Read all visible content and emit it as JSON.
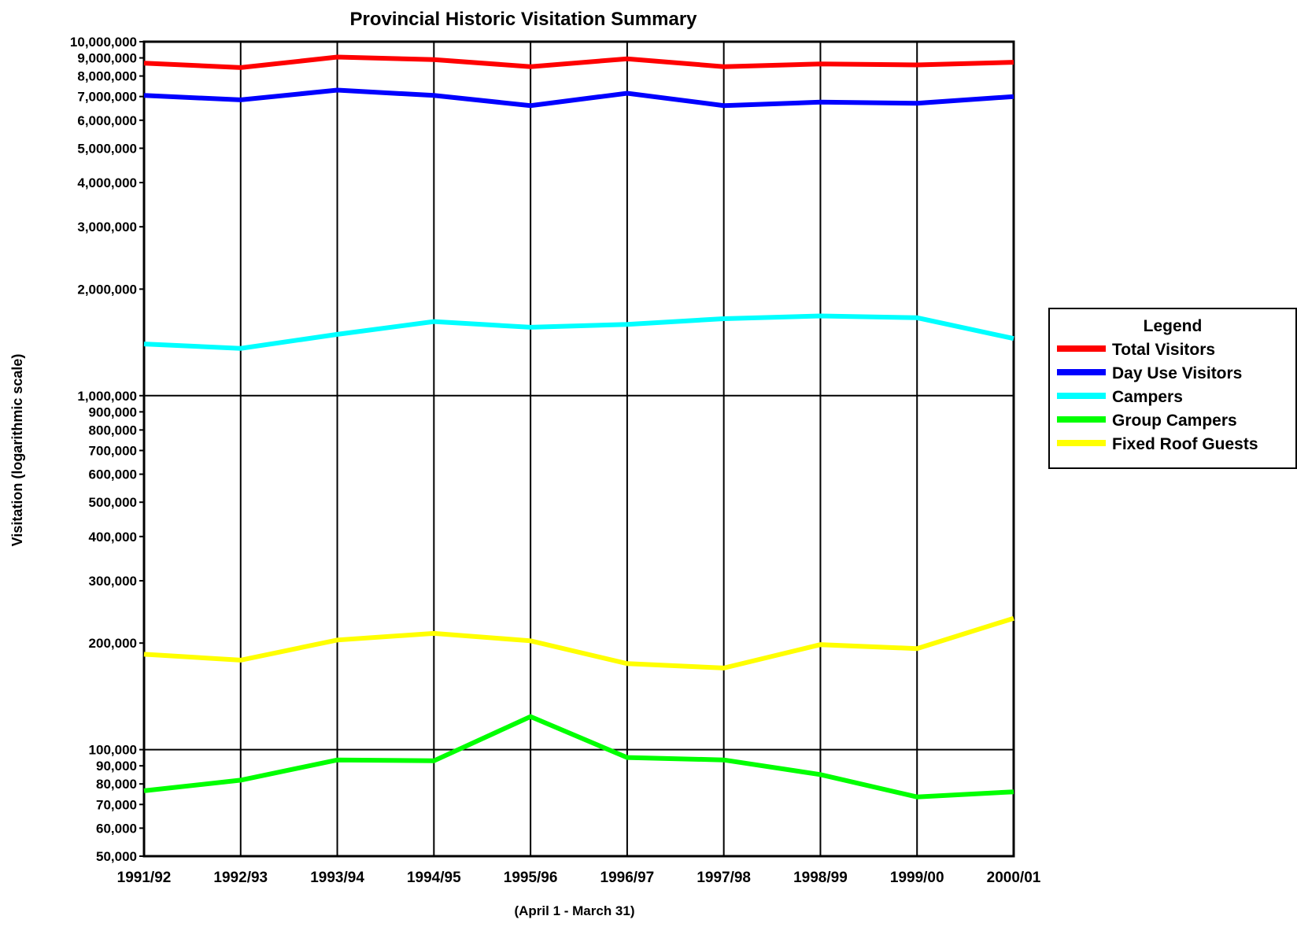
{
  "chart_data": {
    "type": "line",
    "title": "Provincial Historic Visitation Summary",
    "xlabel": "(April 1 - March 31)",
    "ylabel": "Visitation (logarithmic scale)",
    "y_scale": "log",
    "ylim": [
      50000,
      10000000
    ],
    "grid": {
      "vertical": true,
      "horizontal_at_decades": true
    },
    "categories": [
      "1991/92",
      "1992/93",
      "1993/94",
      "1994/95",
      "1995/96",
      "1996/97",
      "1997/98",
      "1998/99",
      "1999/00",
      "2000/01"
    ],
    "y_ticks": [
      {
        "value": 10000000,
        "label": "10,000,000"
      },
      {
        "value": 9000000,
        "label": "9,000,000"
      },
      {
        "value": 8000000,
        "label": "8,000,000"
      },
      {
        "value": 7000000,
        "label": "7,000,000"
      },
      {
        "value": 6000000,
        "label": "6,000,000"
      },
      {
        "value": 5000000,
        "label": "5,000,000"
      },
      {
        "value": 4000000,
        "label": "4,000,000"
      },
      {
        "value": 3000000,
        "label": "3,000,000"
      },
      {
        "value": 2000000,
        "label": "2,000,000"
      },
      {
        "value": 1000000,
        "label": "1,000,000"
      },
      {
        "value": 900000,
        "label": "900,000"
      },
      {
        "value": 800000,
        "label": "800,000"
      },
      {
        "value": 700000,
        "label": "700,000"
      },
      {
        "value": 600000,
        "label": "600,000"
      },
      {
        "value": 500000,
        "label": "500,000"
      },
      {
        "value": 400000,
        "label": "400,000"
      },
      {
        "value": 300000,
        "label": "300,000"
      },
      {
        "value": 200000,
        "label": "200,000"
      },
      {
        "value": 100000,
        "label": "100,000"
      },
      {
        "value": 90000,
        "label": "90,000"
      },
      {
        "value": 80000,
        "label": "80,000"
      },
      {
        "value": 70000,
        "label": "70,000"
      },
      {
        "value": 60000,
        "label": "60,000"
      },
      {
        "value": 50000,
        "label": "50,000"
      }
    ],
    "legend": {
      "title": "Legend",
      "position": "right"
    },
    "series": [
      {
        "name": "Total Visitors",
        "color": "#ff0000",
        "values": [
          8700000,
          8450000,
          9050000,
          8900000,
          8500000,
          8950000,
          8500000,
          8650000,
          8600000,
          8750000
        ]
      },
      {
        "name": "Day Use Visitors",
        "color": "#0000ff",
        "values": [
          7050000,
          6850000,
          7300000,
          7050000,
          6600000,
          7150000,
          6600000,
          6750000,
          6700000,
          7000000
        ]
      },
      {
        "name": "Campers",
        "color": "#00ffff",
        "values": [
          1400000,
          1360000,
          1490000,
          1620000,
          1560000,
          1590000,
          1650000,
          1680000,
          1660000,
          1450000
        ]
      },
      {
        "name": "Group Campers",
        "color": "#00ff00",
        "values": [
          76500,
          82000,
          93500,
          93000,
          124000,
          95000,
          93500,
          85000,
          73500,
          76000
        ]
      },
      {
        "name": "Fixed Roof Guests",
        "color": "#ffff00",
        "values": [
          186000,
          179000,
          204000,
          213000,
          203000,
          175000,
          170000,
          198000,
          193000,
          235000
        ]
      }
    ]
  }
}
